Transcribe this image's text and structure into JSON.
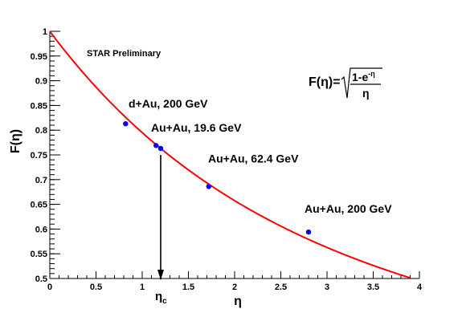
{
  "chart_data": {
    "type": "scatter",
    "title": "",
    "xlabel": "η",
    "ylabel": "F(η)",
    "xlim": [
      0,
      4
    ],
    "ylim": [
      0.5,
      1.0
    ],
    "xticks": [
      0,
      0.5,
      1,
      1.5,
      2,
      2.5,
      3,
      3.5,
      4
    ],
    "xtick_labels": [
      "0",
      "0.5",
      "1",
      "1.5",
      "2",
      "2.5",
      "3",
      "3.5",
      "4"
    ],
    "yticks": [
      0.5,
      0.55,
      0.6,
      0.65,
      0.7,
      0.75,
      0.8,
      0.85,
      0.9,
      0.95,
      1.0
    ],
    "ytick_labels": [
      "0.5",
      "0.55",
      "0.6",
      "0.65",
      "0.7",
      "0.75",
      "0.8",
      "0.85",
      "0.9",
      "0.95",
      "1"
    ],
    "grid": false,
    "series": [
      {
        "type": "scatter",
        "color": "#0000ff",
        "points": [
          {
            "x": 0.82,
            "y": 0.813,
            "label": "d+Au, 200 GeV"
          },
          {
            "x": 1.15,
            "y": 0.769,
            "label": ""
          },
          {
            "x": 1.2,
            "y": 0.763,
            "label": "Au+Au, 19.6 GeV"
          },
          {
            "x": 1.72,
            "y": 0.686,
            "label": "Au+Au, 62.4 GeV"
          },
          {
            "x": 2.8,
            "y": 0.594,
            "label": "Au+Au, 200 GeV"
          }
        ]
      },
      {
        "type": "line",
        "color": "#ff0000",
        "function": "sqrt((1-exp(-x))/x)",
        "x_range": [
          0,
          3.9
        ]
      }
    ],
    "annotations": {
      "preliminary": "STAR Preliminary",
      "formula_lhs": "F(η)=",
      "formula_num_base": "1-e",
      "formula_num_exp": "-η",
      "formula_den": "η",
      "eta_c_base": "η",
      "eta_c_sub": "c",
      "eta_c_value": 1.2,
      "arrow_from_y": 0.75,
      "arrow_to_y": 0.5
    }
  }
}
